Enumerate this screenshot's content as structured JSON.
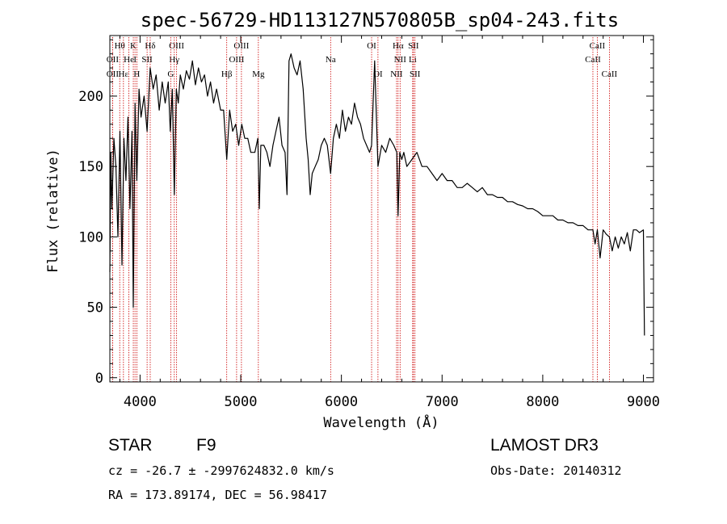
{
  "chart_data": {
    "type": "line",
    "title": "spec-56729-HD113127N570805B_sp04-243.fits",
    "xlabel": "Wavelength (Å)",
    "ylabel": "Flux (relative)",
    "xlim": [
      3700,
      9100
    ],
    "ylim": [
      -3,
      243
    ],
    "xticks": [
      4000,
      5000,
      6000,
      7000,
      8000,
      9000
    ],
    "yticks": [
      0,
      50,
      100,
      150,
      200
    ],
    "grid": false,
    "line_color": "#000000",
    "marker_color": "#cc0000",
    "series": [
      {
        "x": [
          3700,
          3710,
          3720,
          3740,
          3760,
          3780,
          3800,
          3820,
          3840,
          3860,
          3880,
          3900,
          3920,
          3933,
          3950,
          3968,
          3990,
          4010,
          4040,
          4070,
          4100,
          4130,
          4160,
          4190,
          4220,
          4250,
          4280,
          4300,
          4320,
          4340,
          4360,
          4380,
          4400,
          4430,
          4460,
          4490,
          4520,
          4550,
          4580,
          4610,
          4640,
          4670,
          4700,
          4730,
          4760,
          4800,
          4830,
          4861,
          4890,
          4920,
          4950,
          4980,
          5010,
          5040,
          5070,
          5100,
          5140,
          5170,
          5184,
          5200,
          5230,
          5260,
          5290,
          5320,
          5350,
          5380,
          5410,
          5440,
          5460,
          5480,
          5500,
          5530,
          5560,
          5590,
          5620,
          5650,
          5670,
          5690,
          5710,
          5740,
          5770,
          5800,
          5830,
          5860,
          5893,
          5920,
          5950,
          5980,
          6010,
          6040,
          6070,
          6100,
          6130,
          6160,
          6190,
          6220,
          6250,
          6280,
          6300,
          6330,
          6363,
          6400,
          6440,
          6480,
          6520,
          6550,
          6563,
          6580,
          6600,
          6620,
          6650,
          6700,
          6750,
          6800,
          6850,
          6900,
          6950,
          7000,
          7050,
          7100,
          7150,
          7200,
          7250,
          7300,
          7350,
          7400,
          7450,
          7500,
          7550,
          7600,
          7650,
          7700,
          7750,
          7800,
          7850,
          7900,
          7950,
          8000,
          8050,
          8100,
          8150,
          8200,
          8250,
          8300,
          8350,
          8400,
          8450,
          8498,
          8520,
          8542,
          8570,
          8600,
          8630,
          8662,
          8690,
          8720,
          8750,
          8780,
          8810,
          8840,
          8870,
          8900,
          8930,
          8960,
          9000,
          9010
        ],
        "values": [
          75,
          160,
          120,
          170,
          150,
          100,
          175,
          80,
          170,
          140,
          185,
          120,
          175,
          50,
          195,
          140,
          205,
          185,
          200,
          175,
          220,
          205,
          215,
          190,
          210,
          195,
          210,
          175,
          205,
          130,
          205,
          195,
          215,
          205,
          218,
          212,
          225,
          208,
          220,
          210,
          215,
          200,
          210,
          195,
          205,
          190,
          190,
          155,
          190,
          175,
          180,
          165,
          180,
          170,
          170,
          160,
          160,
          170,
          120,
          165,
          165,
          160,
          150,
          165,
          175,
          185,
          165,
          160,
          130,
          225,
          230,
          220,
          215,
          225,
          205,
          170,
          155,
          130,
          145,
          150,
          155,
          165,
          170,
          165,
          145,
          170,
          180,
          170,
          190,
          175,
          185,
          180,
          195,
          185,
          180,
          170,
          165,
          160,
          165,
          225,
          150,
          165,
          160,
          170,
          165,
          160,
          115,
          160,
          155,
          160,
          150,
          155,
          160,
          150,
          150,
          145,
          140,
          145,
          140,
          140,
          135,
          135,
          138,
          135,
          132,
          135,
          130,
          130,
          128,
          128,
          125,
          125,
          123,
          122,
          120,
          120,
          118,
          115,
          115,
          115,
          112,
          112,
          110,
          110,
          108,
          108,
          105,
          105,
          95,
          105,
          85,
          105,
          102,
          100,
          90,
          100,
          92,
          100,
          95,
          103,
          90,
          105,
          105,
          103,
          105,
          30
        ]
      }
    ],
    "line_markers": [
      {
        "label": "Hθ",
        "x": 3798,
        "row": 0
      },
      {
        "label": "K",
        "x": 3933,
        "row": 0
      },
      {
        "label": "Hδ",
        "x": 4101,
        "row": 0
      },
      {
        "label": "OIII",
        "x": 4363,
        "row": 0
      },
      {
        "label": "OIII",
        "x": 5007,
        "row": 0
      },
      {
        "label": "OI",
        "x": 6300,
        "row": 0
      },
      {
        "label": "Hα",
        "x": 6563,
        "row": 0
      },
      {
        "label": "SII",
        "x": 6716,
        "row": 0
      },
      {
        "label": "CaII",
        "x": 8542,
        "row": 0
      },
      {
        "label": "OII",
        "x": 3727,
        "row": 1
      },
      {
        "label": "He",
        "x": 3889,
        "row": 1
      },
      {
        "label": "I",
        "x": 3950,
        "row": 1
      },
      {
        "label": "SII",
        "x": 4070,
        "row": 1
      },
      {
        "label": "Hγ",
        "x": 4340,
        "row": 1
      },
      {
        "label": "OIII",
        "x": 4959,
        "row": 1
      },
      {
        "label": "Na",
        "x": 5893,
        "row": 1
      },
      {
        "label": "NII",
        "x": 6583,
        "row": 1
      },
      {
        "label": "Li",
        "x": 6708,
        "row": 1
      },
      {
        "label": "CaII",
        "x": 8498,
        "row": 1
      },
      {
        "label": "OII",
        "x": 3727,
        "row": 2
      },
      {
        "label": "Hε",
        "x": 3835,
        "row": 2
      },
      {
        "label": "H",
        "x": 3968,
        "row": 2
      },
      {
        "label": "G",
        "x": 4305,
        "row": 2
      },
      {
        "label": "Hβ",
        "x": 4861,
        "row": 2
      },
      {
        "label": "Mg",
        "x": 5175,
        "row": 2
      },
      {
        "label": "OI",
        "x": 6363,
        "row": 2
      },
      {
        "label": "NII",
        "x": 6548,
        "row": 2
      },
      {
        "label": "SII",
        "x": 6731,
        "row": 2
      },
      {
        "label": "CaII",
        "x": 8662,
        "row": 2
      }
    ]
  },
  "info": {
    "object_class": "STAR",
    "subclass": "F9",
    "survey": "LAMOST DR3",
    "cz": "cz = -26.7 ± -2997624832.0 km/s",
    "obs_date": "Obs-Date: 20140312",
    "coords": "RA = 173.89174, DEC =  56.98417"
  }
}
